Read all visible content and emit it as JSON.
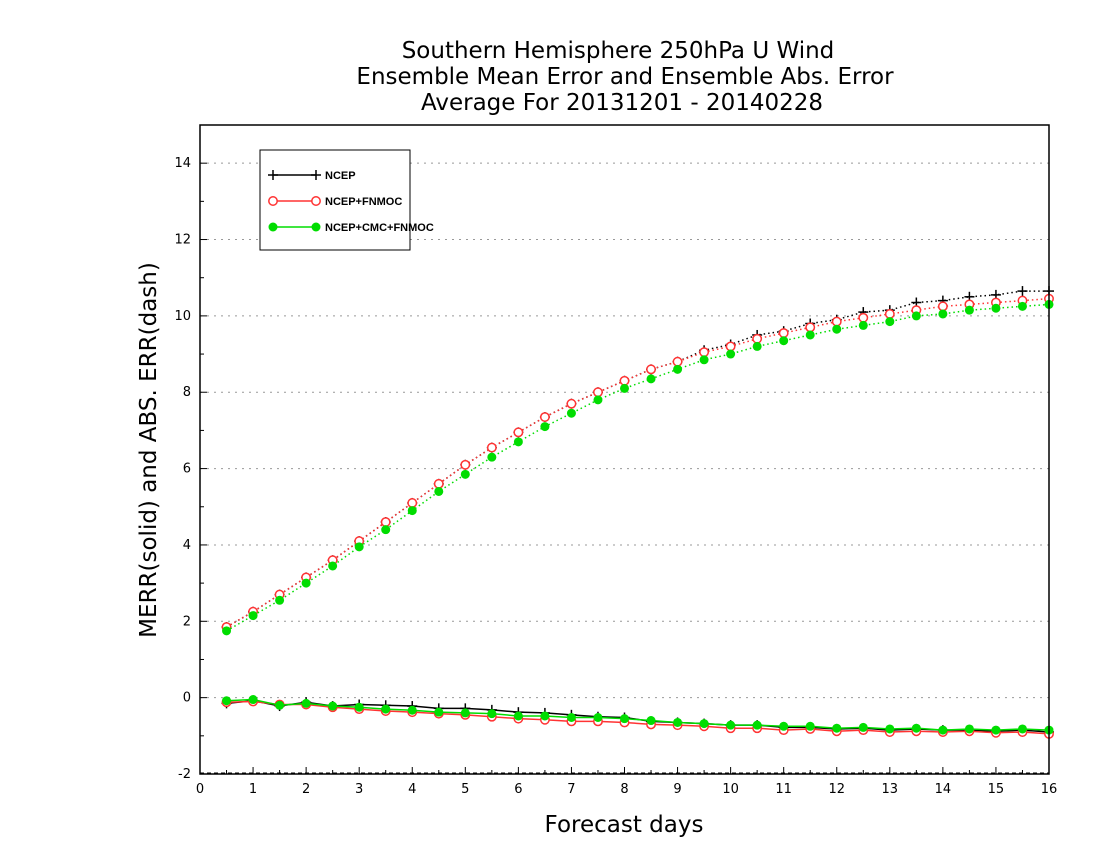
{
  "chart_data": {
    "type": "line",
    "title": "Southern Hemisphere 250hPa U Wind",
    "subtitle": "Ensemble Mean Error and Ensemble Abs. Error",
    "subtitle2": "Average For 20131201 - 20140228",
    "xlabel": "Forecast days",
    "ylabel": "MERR(solid) and ABS. ERR(dash)",
    "xlim": [
      0,
      16
    ],
    "ylim": [
      -2,
      15
    ],
    "xticks": [
      "0",
      "1",
      "2",
      "3",
      "4",
      "5",
      "6",
      "7",
      "8",
      "9",
      "10",
      "11",
      "12",
      "13",
      "14",
      "15",
      "16"
    ],
    "yticks": [
      "-2",
      "0",
      "2",
      "4",
      "6",
      "8",
      "10",
      "12",
      "14"
    ],
    "grid": "horizontal dotted",
    "legend_position": "top-left",
    "x": [
      0.5,
      1,
      1.5,
      2,
      2.5,
      3,
      3.5,
      4,
      4.5,
      5,
      5.5,
      6,
      6.5,
      7,
      7.5,
      8,
      8.5,
      9,
      9.5,
      10,
      10.5,
      11,
      11.5,
      12,
      12.5,
      13,
      13.5,
      14,
      14.5,
      15,
      15.5,
      16
    ],
    "series": [
      {
        "name": "NCEP",
        "color": "#000000",
        "marker": "plus",
        "abs_error": [
          1.85,
          2.25,
          2.7,
          3.15,
          3.6,
          4.1,
          4.6,
          5.1,
          5.6,
          6.1,
          6.55,
          6.95,
          7.35,
          7.7,
          8.0,
          8.3,
          8.6,
          8.8,
          9.1,
          9.25,
          9.5,
          9.6,
          9.8,
          9.9,
          10.1,
          10.15,
          10.35,
          10.4,
          10.5,
          10.55,
          10.65,
          10.65
        ],
        "mean_error": [
          -0.15,
          -0.08,
          -0.22,
          -0.12,
          -0.22,
          -0.18,
          -0.2,
          -0.22,
          -0.28,
          -0.28,
          -0.32,
          -0.38,
          -0.4,
          -0.45,
          -0.5,
          -0.52,
          -0.62,
          -0.65,
          -0.68,
          -0.72,
          -0.72,
          -0.78,
          -0.78,
          -0.82,
          -0.8,
          -0.85,
          -0.82,
          -0.85,
          -0.85,
          -0.88,
          -0.85,
          -0.9
        ]
      },
      {
        "name": "NCEP+FNMOC",
        "color": "#ff3333",
        "marker": "circle-open",
        "abs_error": [
          1.85,
          2.25,
          2.7,
          3.15,
          3.6,
          4.1,
          4.6,
          5.1,
          5.6,
          6.1,
          6.55,
          6.95,
          7.35,
          7.7,
          8.0,
          8.3,
          8.6,
          8.8,
          9.05,
          9.2,
          9.4,
          9.55,
          9.7,
          9.85,
          9.95,
          10.05,
          10.15,
          10.25,
          10.3,
          10.35,
          10.4,
          10.45
        ],
        "mean_error": [
          -0.12,
          -0.1,
          -0.18,
          -0.18,
          -0.25,
          -0.3,
          -0.35,
          -0.38,
          -0.42,
          -0.45,
          -0.5,
          -0.55,
          -0.58,
          -0.62,
          -0.62,
          -0.65,
          -0.7,
          -0.72,
          -0.75,
          -0.8,
          -0.8,
          -0.85,
          -0.82,
          -0.88,
          -0.85,
          -0.9,
          -0.88,
          -0.9,
          -0.88,
          -0.92,
          -0.9,
          -0.95
        ]
      },
      {
        "name": "NCEP+CMC+FNMOC",
        "color": "#00dd00",
        "marker": "circle-filled",
        "abs_error": [
          1.75,
          2.15,
          2.55,
          3.0,
          3.45,
          3.95,
          4.4,
          4.9,
          5.4,
          5.85,
          6.3,
          6.7,
          7.1,
          7.45,
          7.8,
          8.1,
          8.35,
          8.6,
          8.85,
          9.0,
          9.2,
          9.35,
          9.5,
          9.65,
          9.75,
          9.85,
          10.0,
          10.05,
          10.15,
          10.2,
          10.25,
          10.3
        ],
        "mean_error": [
          -0.08,
          -0.05,
          -0.2,
          -0.15,
          -0.22,
          -0.25,
          -0.3,
          -0.33,
          -0.38,
          -0.4,
          -0.42,
          -0.48,
          -0.48,
          -0.52,
          -0.52,
          -0.55,
          -0.6,
          -0.65,
          -0.68,
          -0.72,
          -0.72,
          -0.75,
          -0.75,
          -0.8,
          -0.78,
          -0.82,
          -0.8,
          -0.85,
          -0.82,
          -0.85,
          -0.82,
          -0.85
        ]
      }
    ]
  }
}
